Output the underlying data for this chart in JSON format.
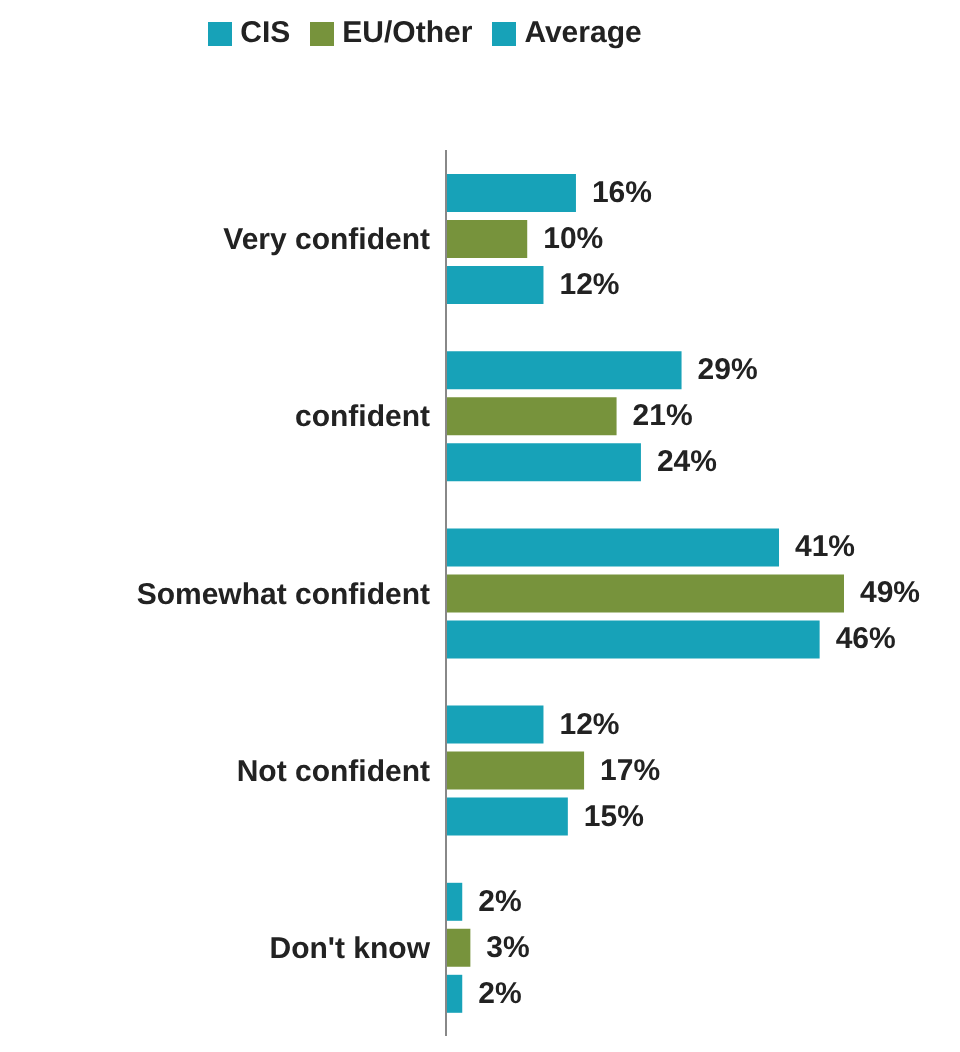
{
  "chart_data": {
    "type": "bar",
    "orientation": "horizontal",
    "categories": [
      "Very confident",
      "confident",
      "Somewhat confident",
      "Not confident",
      "Don't know"
    ],
    "series": [
      {
        "name": "CIS",
        "color": "#17a2b8",
        "values": [
          16,
          29,
          41,
          12,
          2
        ],
        "value_labels": [
          "16%",
          "29%",
          "41%",
          "12%",
          "2%"
        ]
      },
      {
        "name": "EU/Other",
        "color": "#77933c",
        "values": [
          10,
          21,
          49,
          17,
          3
        ],
        "value_labels": [
          "10%",
          "21%",
          "49%",
          "17%",
          "3%"
        ]
      },
      {
        "name": "Average",
        "color": "#17a2b8",
        "values": [
          12,
          24,
          46,
          15,
          2
        ],
        "value_labels": [
          "12%",
          "24%",
          "46%",
          "15%",
          "2%"
        ]
      }
    ],
    "legend": "top"
  }
}
